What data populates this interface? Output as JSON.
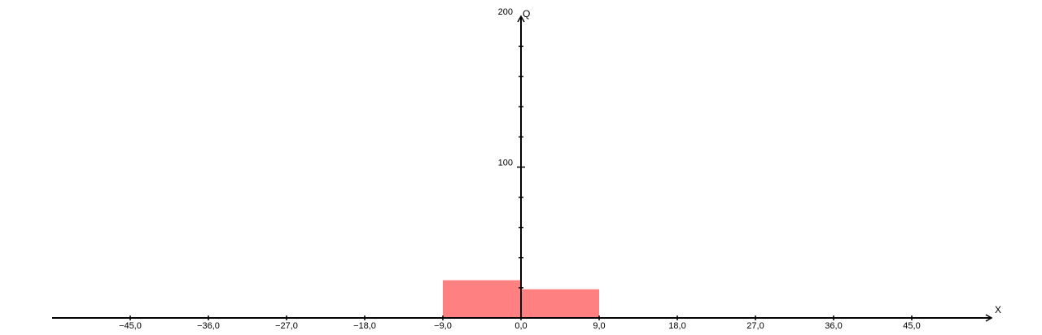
{
  "chart_data": {
    "type": "bar",
    "title": "",
    "xlabel": "X",
    "ylabel": "Q",
    "xlim": [
      -59,
      61
    ],
    "ylim": [
      0,
      200
    ],
    "grid": false,
    "bars": [
      {
        "x0": -9,
        "x1": 0,
        "value": 25
      },
      {
        "x0": 0,
        "x1": 9,
        "value": 19
      }
    ],
    "x_ticks": [
      -45,
      -36,
      -27,
      -18,
      -9,
      0,
      9,
      18,
      27,
      36,
      45
    ],
    "x_tick_labels": [
      "−45,0",
      "−36,0",
      "−27,0",
      "−18,0",
      "−9,0",
      "0,0",
      "9,0",
      "18,0",
      "27,0",
      "36,0",
      "45,0"
    ],
    "y_minor_ticks": [
      20,
      40,
      60,
      80,
      100,
      120,
      140,
      160,
      180
    ],
    "y_tick_labels": [
      {
        "value": 100,
        "label": "100"
      },
      {
        "value": 200,
        "label": "200"
      }
    ],
    "bar_color": "#ff8080",
    "axis_color": "#000000"
  }
}
